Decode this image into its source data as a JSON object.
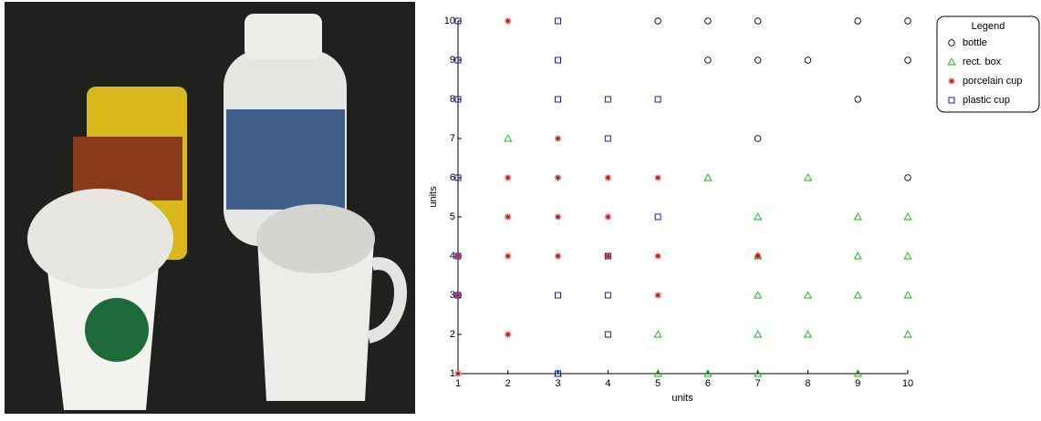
{
  "chart_data": {
    "type": "scatter",
    "xlabel": "units",
    "ylabel": "units",
    "xlim": [
      1,
      10
    ],
    "ylim": [
      1,
      10
    ],
    "xticks": [
      1,
      2,
      3,
      4,
      5,
      6,
      7,
      8,
      9,
      10
    ],
    "yticks": [
      1,
      2,
      3,
      4,
      5,
      6,
      7,
      8,
      9,
      10
    ],
    "legend_title": "Legend",
    "legend": "top-right",
    "series": [
      {
        "name": "bottle",
        "color": "#000000",
        "marker": "o",
        "x": [
          5,
          6,
          7,
          9,
          10,
          6,
          7,
          8,
          10,
          9,
          7,
          10
        ],
        "values": [
          10,
          10,
          10,
          10,
          10,
          9,
          9,
          9,
          9,
          8,
          7,
          6
        ]
      },
      {
        "name": "rect. box",
        "color": "#00c000",
        "marker": "^",
        "x": [
          2,
          6,
          8,
          7,
          9,
          10,
          7,
          9,
          10,
          7,
          8,
          9,
          10,
          5,
          7,
          8,
          10,
          3,
          5,
          6,
          7,
          9
        ],
        "values": [
          7,
          6,
          6,
          5,
          5,
          5,
          4,
          4,
          4,
          3,
          3,
          3,
          3,
          2,
          2,
          2,
          2,
          1,
          1,
          1,
          1,
          1
        ]
      },
      {
        "name": "porcelain cup",
        "color": "#d00000",
        "marker": "*",
        "x": [
          2,
          3,
          2,
          3,
          4,
          5,
          2,
          3,
          4,
          1,
          2,
          3,
          4,
          5,
          7,
          1,
          5,
          2,
          1
        ],
        "values": [
          10,
          7,
          6,
          6,
          6,
          6,
          5,
          5,
          5,
          4,
          4,
          4,
          4,
          4,
          4,
          3,
          3,
          2,
          1
        ]
      },
      {
        "name": "plastic cup",
        "color": "#0000c0",
        "marker": "s",
        "x": [
          1,
          3,
          1,
          3,
          1,
          3,
          4,
          5,
          4,
          1,
          5,
          1,
          4,
          1,
          3,
          4,
          4,
          3
        ],
        "values": [
          10,
          10,
          9,
          9,
          8,
          8,
          8,
          8,
          7,
          6,
          5,
          4,
          4,
          3,
          3,
          3,
          2,
          1
        ]
      }
    ]
  }
}
